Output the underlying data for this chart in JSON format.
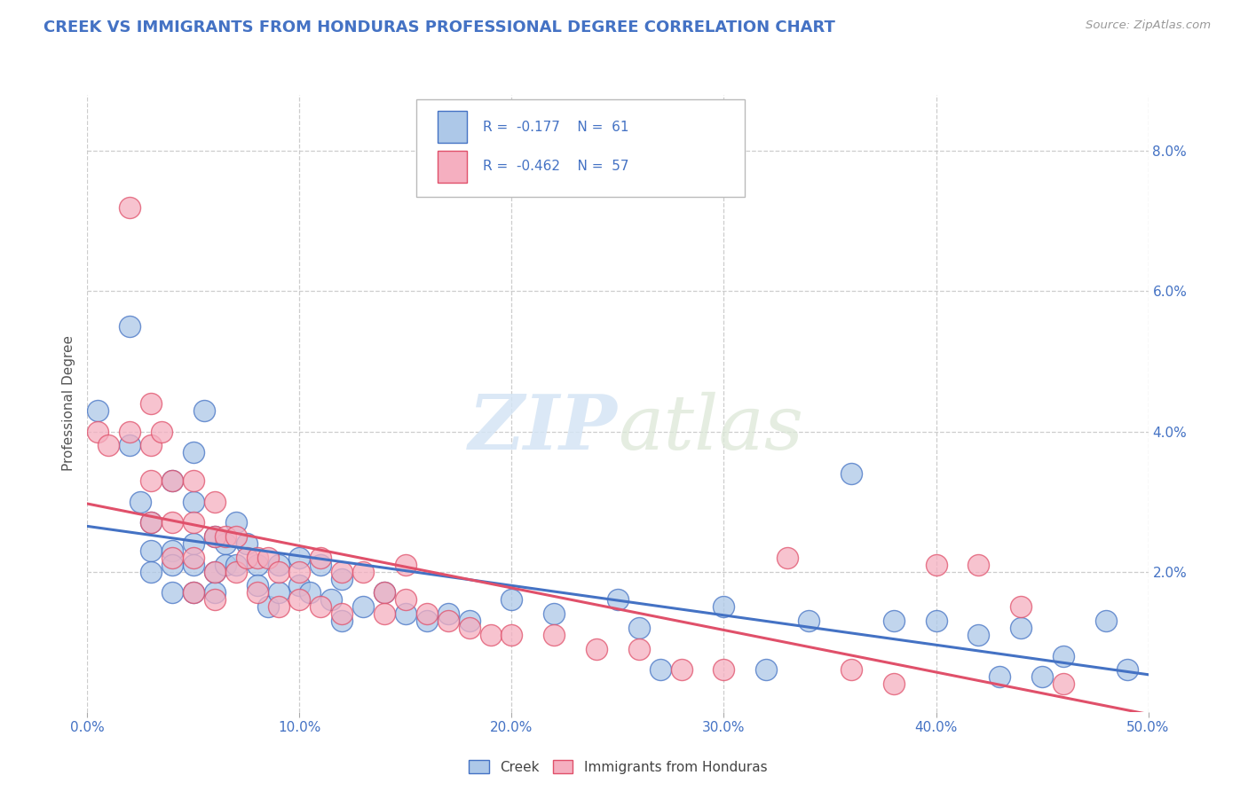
{
  "title": "CREEK VS IMMIGRANTS FROM HONDURAS PROFESSIONAL DEGREE CORRELATION CHART",
  "source_text": "Source: ZipAtlas.com",
  "ylabel": "Professional Degree",
  "xlim": [
    0.0,
    0.5
  ],
  "ylim": [
    0.0,
    0.088
  ],
  "xtick_labels": [
    "0.0%",
    "10.0%",
    "20.0%",
    "30.0%",
    "40.0%",
    "50.0%"
  ],
  "xtick_vals": [
    0.0,
    0.1,
    0.2,
    0.3,
    0.4,
    0.5
  ],
  "ytick_labels": [
    "2.0%",
    "4.0%",
    "6.0%",
    "8.0%"
  ],
  "ytick_vals": [
    0.02,
    0.04,
    0.06,
    0.08
  ],
  "creek_color": "#adc8e8",
  "honduras_color": "#f5afc0",
  "creek_line_color": "#4472c4",
  "honduras_line_color": "#e0506a",
  "watermark_color": "#dce8f5",
  "legend_creek_r": "-0.177",
  "legend_creek_n": "61",
  "legend_honduras_r": "-0.462",
  "legend_honduras_n": "57",
  "background_color": "#ffffff",
  "grid_color": "#c8c8c8",
  "title_color": "#4472c4",
  "axis_color": "#4472c4",
  "creek_scatter_x": [
    0.005,
    0.02,
    0.02,
    0.025,
    0.03,
    0.03,
    0.03,
    0.04,
    0.04,
    0.04,
    0.04,
    0.05,
    0.05,
    0.05,
    0.05,
    0.05,
    0.055,
    0.06,
    0.06,
    0.06,
    0.065,
    0.065,
    0.07,
    0.07,
    0.075,
    0.08,
    0.08,
    0.085,
    0.09,
    0.09,
    0.1,
    0.1,
    0.105,
    0.11,
    0.115,
    0.12,
    0.12,
    0.13,
    0.14,
    0.15,
    0.16,
    0.17,
    0.18,
    0.2,
    0.22,
    0.25,
    0.26,
    0.27,
    0.3,
    0.32,
    0.34,
    0.36,
    0.38,
    0.4,
    0.42,
    0.43,
    0.44,
    0.45,
    0.46,
    0.48,
    0.49
  ],
  "creek_scatter_y": [
    0.043,
    0.055,
    0.038,
    0.03,
    0.027,
    0.023,
    0.02,
    0.033,
    0.023,
    0.021,
    0.017,
    0.037,
    0.03,
    0.024,
    0.021,
    0.017,
    0.043,
    0.025,
    0.02,
    0.017,
    0.024,
    0.021,
    0.027,
    0.021,
    0.024,
    0.021,
    0.018,
    0.015,
    0.021,
    0.017,
    0.022,
    0.018,
    0.017,
    0.021,
    0.016,
    0.019,
    0.013,
    0.015,
    0.017,
    0.014,
    0.013,
    0.014,
    0.013,
    0.016,
    0.014,
    0.016,
    0.012,
    0.006,
    0.015,
    0.006,
    0.013,
    0.034,
    0.013,
    0.013,
    0.011,
    0.005,
    0.012,
    0.005,
    0.008,
    0.013,
    0.006
  ],
  "honduras_scatter_x": [
    0.005,
    0.01,
    0.02,
    0.02,
    0.03,
    0.03,
    0.03,
    0.03,
    0.035,
    0.04,
    0.04,
    0.04,
    0.05,
    0.05,
    0.05,
    0.05,
    0.06,
    0.06,
    0.06,
    0.06,
    0.065,
    0.07,
    0.07,
    0.075,
    0.08,
    0.08,
    0.085,
    0.09,
    0.09,
    0.1,
    0.1,
    0.11,
    0.11,
    0.12,
    0.12,
    0.13,
    0.14,
    0.14,
    0.15,
    0.15,
    0.16,
    0.17,
    0.18,
    0.19,
    0.2,
    0.22,
    0.24,
    0.26,
    0.28,
    0.3,
    0.33,
    0.36,
    0.38,
    0.4,
    0.42,
    0.44,
    0.46
  ],
  "honduras_scatter_y": [
    0.04,
    0.038,
    0.072,
    0.04,
    0.044,
    0.038,
    0.033,
    0.027,
    0.04,
    0.033,
    0.027,
    0.022,
    0.033,
    0.027,
    0.022,
    0.017,
    0.03,
    0.025,
    0.02,
    0.016,
    0.025,
    0.025,
    0.02,
    0.022,
    0.022,
    0.017,
    0.022,
    0.02,
    0.015,
    0.02,
    0.016,
    0.022,
    0.015,
    0.02,
    0.014,
    0.02,
    0.017,
    0.014,
    0.016,
    0.021,
    0.014,
    0.013,
    0.012,
    0.011,
    0.011,
    0.011,
    0.009,
    0.009,
    0.006,
    0.006,
    0.022,
    0.006,
    0.004,
    0.021,
    0.021,
    0.015,
    0.004
  ]
}
